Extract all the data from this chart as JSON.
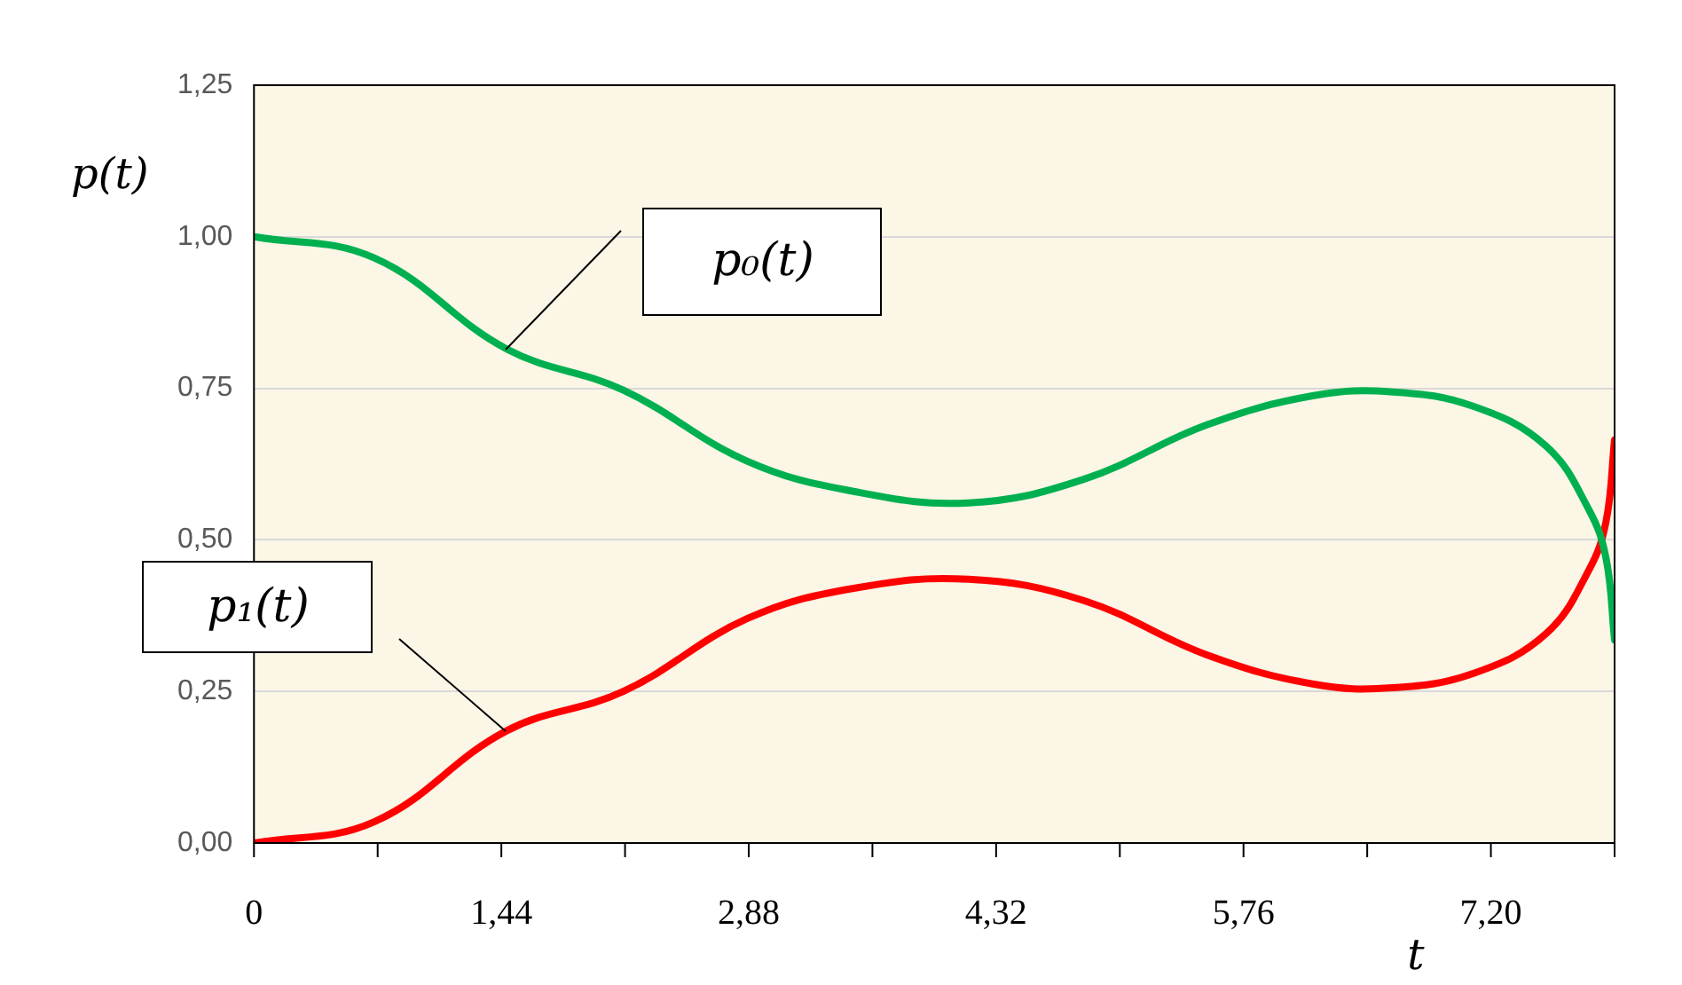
{
  "chart_data": {
    "type": "line",
    "xlabel": "t",
    "ylabel": "p(t)",
    "x": [
      0,
      0.7,
      1.47,
      2.15,
      2.87,
      3.49,
      4.16,
      4.83,
      5.55,
      6.17,
      6.63,
      7.1,
      7.52,
      7.77,
      7.87,
      7.92
    ],
    "series": [
      {
        "color": "#00b050",
        "values": [
          1.0,
          0.965,
          0.815,
          0.747,
          0.63,
          0.58,
          0.561,
          0.6,
          0.69,
          0.738,
          0.744,
          0.72,
          0.655,
          0.55,
          0.47,
          0.335
        ]
      },
      {
        "color": "#ff0000",
        "values": [
          0,
          0.035,
          0.185,
          0.25,
          0.37,
          0.42,
          0.435,
          0.4,
          0.31,
          0.262,
          0.256,
          0.28,
          0.345,
          0.45,
          0.53,
          0.665
        ]
      }
    ],
    "xlim": [
      0,
      7.92
    ],
    "xticks": [
      0,
      {
        "value": 0.72,
        "label": null
      },
      {
        "value": 1.44,
        "label": "1,44"
      },
      {
        "value": 2.16,
        "label": null
      },
      {
        "value": 2.88,
        "label": "2,88"
      },
      {
        "value": 3.6,
        "label": null
      },
      {
        "value": 4.32,
        "label": "4,32"
      },
      {
        "value": 5.04,
        "label": null
      },
      {
        "value": 5.76,
        "label": "5,76"
      },
      {
        "value": 6.48,
        "label": null
      },
      {
        "value": 7.2,
        "label": "7,20"
      },
      {
        "value": 7.92,
        "label": null
      }
    ],
    "ylim": [
      0,
      1.25
    ],
    "yticks": [
      {
        "value": 0,
        "label": "0,00"
      },
      {
        "value": 0.25,
        "label": "0,25"
      },
      {
        "value": 0.5,
        "label": "0,50"
      },
      {
        "value": 0.75,
        "label": "0,75"
      },
      {
        "value": 1,
        "label": "1,00"
      },
      {
        "value": 1.25,
        "label": "1,25"
      }
    ],
    "grid": "y",
    "legend": false,
    "marker": "none",
    "line_style": "solid",
    "annotations": [
      "p₀(t)",
      "p₁(t)"
    ]
  }
}
